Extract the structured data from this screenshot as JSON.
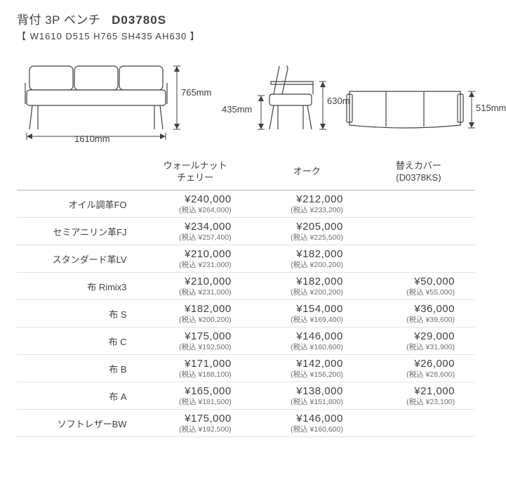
{
  "header": {
    "title_prefix": "背付 3P ベンチ",
    "model": "D03780S",
    "dims_line": "【 W1610  D515  H765  SH435  AH630 】"
  },
  "diagram_labels": {
    "front_width": "1610mm",
    "front_height": "765mm",
    "side_sh": "435mm",
    "side_ah": "630mm",
    "top_depth": "515mm"
  },
  "columns": [
    {
      "l1": "ウォールナット",
      "l2": "チェリー"
    },
    {
      "l1": "オーク",
      "l2": ""
    },
    {
      "l1": "替えカバー",
      "l2": "(D0378KS)"
    }
  ],
  "tax_prefix": "(税込 ",
  "tax_suffix": ")",
  "rows": [
    {
      "label": "オイル調革FO",
      "cells": [
        {
          "p": "¥240,000",
          "t": "¥264,000"
        },
        {
          "p": "¥212,000",
          "t": "¥233,200"
        },
        null
      ]
    },
    {
      "label": "セミアニリン革FJ",
      "cells": [
        {
          "p": "¥234,000",
          "t": "¥257,400"
        },
        {
          "p": "¥205,000",
          "t": "¥225,500"
        },
        null
      ]
    },
    {
      "label": "スタンダード革LV",
      "cells": [
        {
          "p": "¥210,000",
          "t": "¥231,000"
        },
        {
          "p": "¥182,000",
          "t": "¥200,200"
        },
        null
      ]
    },
    {
      "label": "布 Rimix3",
      "cells": [
        {
          "p": "¥210,000",
          "t": "¥231,000"
        },
        {
          "p": "¥182,000",
          "t": "¥200,200"
        },
        {
          "p": "¥50,000",
          "t": "¥55,000"
        }
      ]
    },
    {
      "label": "布 S",
      "cells": [
        {
          "p": "¥182,000",
          "t": "¥200,200"
        },
        {
          "p": "¥154,000",
          "t": "¥169,400"
        },
        {
          "p": "¥36,000",
          "t": "¥39,600"
        }
      ]
    },
    {
      "label": "布 C",
      "cells": [
        {
          "p": "¥175,000",
          "t": "¥192,500"
        },
        {
          "p": "¥146,000",
          "t": "¥160,600"
        },
        {
          "p": "¥29,000",
          "t": "¥31,900"
        }
      ]
    },
    {
      "label": "布 B",
      "cells": [
        {
          "p": "¥171,000",
          "t": "¥188,100"
        },
        {
          "p": "¥142,000",
          "t": "¥156,200"
        },
        {
          "p": "¥26,000",
          "t": "¥28,600"
        }
      ]
    },
    {
      "label": "布 A",
      "cells": [
        {
          "p": "¥165,000",
          "t": "¥181,500"
        },
        {
          "p": "¥138,000",
          "t": "¥151,800"
        },
        {
          "p": "¥21,000",
          "t": "¥23,100"
        }
      ]
    },
    {
      "label": "ソフトレザーBW",
      "cells": [
        {
          "p": "¥175,000",
          "t": "¥192,500"
        },
        {
          "p": "¥146,000",
          "t": "¥160,600"
        },
        null
      ]
    }
  ]
}
